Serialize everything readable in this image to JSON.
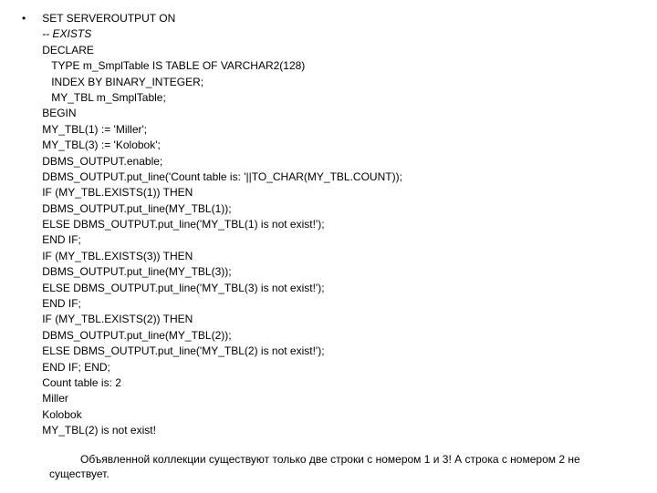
{
  "bullet_symbol": "•",
  "code_lines": [
    {
      "text": "SET SERVEROUTPUT ON",
      "italic": false,
      "indent": 0
    },
    {
      "text": "-- EXISTS",
      "italic": true,
      "indent": 0
    },
    {
      "text": "DECLARE",
      "italic": false,
      "indent": 0
    },
    {
      "text": "TYPE m_SmplTable IS TABLE OF VARCHAR2(128)",
      "italic": false,
      "indent": 1
    },
    {
      "text": "INDEX BY BINARY_INTEGER;",
      "italic": false,
      "indent": 1
    },
    {
      "text": "MY_TBL m_SmplTable;",
      "italic": false,
      "indent": 1
    },
    {
      "text": "BEGIN",
      "italic": false,
      "indent": 0
    },
    {
      "text": "MY_TBL(1) := 'Miller';",
      "italic": false,
      "indent": 0
    },
    {
      "text": "MY_TBL(3) := 'Kolobok';",
      "italic": false,
      "indent": 0
    },
    {
      "text": "DBMS_OUTPUT.enable;",
      "italic": false,
      "indent": 0
    },
    {
      "text": "DBMS_OUTPUT.put_line('Count table is: '||TO_CHAR(MY_TBL.COUNT));",
      "italic": false,
      "indent": 0
    },
    {
      "text": "IF (MY_TBL.EXISTS(1)) THEN",
      "italic": false,
      "indent": 0
    },
    {
      "text": "DBMS_OUTPUT.put_line(MY_TBL(1));",
      "italic": false,
      "indent": 0
    },
    {
      "text": "ELSE DBMS_OUTPUT.put_line('MY_TBL(1) is not exist!');",
      "italic": false,
      "indent": 0
    },
    {
      "text": "END IF;",
      "italic": false,
      "indent": 0
    },
    {
      "text": "IF (MY_TBL.EXISTS(3)) THEN",
      "italic": false,
      "indent": 0
    },
    {
      "text": "DBMS_OUTPUT.put_line(MY_TBL(3));",
      "italic": false,
      "indent": 0
    },
    {
      "text": "ELSE DBMS_OUTPUT.put_line('MY_TBL(3) is not exist!');",
      "italic": false,
      "indent": 0
    },
    {
      "text": "END IF;",
      "italic": false,
      "indent": 0
    },
    {
      "text": "IF (MY_TBL.EXISTS(2)) THEN",
      "italic": false,
      "indent": 0
    },
    {
      "text": "DBMS_OUTPUT.put_line(MY_TBL(2));",
      "italic": false,
      "indent": 0
    },
    {
      "text": "ELSE DBMS_OUTPUT.put_line('MY_TBL(2) is not exist!');",
      "italic": false,
      "indent": 0
    },
    {
      "text": "END IF; END;",
      "italic": false,
      "indent": 0
    },
    {
      "text": "Count table is: 2",
      "italic": false,
      "indent": 0
    },
    {
      "text": "Miller",
      "italic": false,
      "indent": 0
    },
    {
      "text": "Kolobok",
      "italic": false,
      "indent": 0
    },
    {
      "text": "MY_TBL(2) is not exist!",
      "italic": false,
      "indent": 0
    }
  ],
  "footer_text": "Объявленной коллекции существуют только две строки с номером 1 и 3! А строка с номером 2 не существует."
}
